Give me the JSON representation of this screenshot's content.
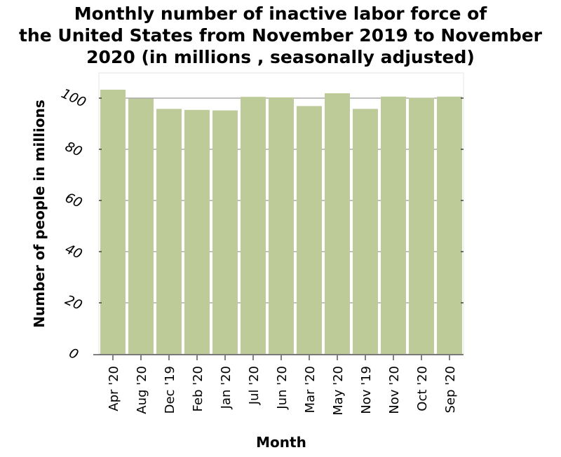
{
  "chart_data": {
    "type": "bar",
    "title_lines": [
      "Monthly number of inactive labor force of",
      "the United States from November 2019 to November",
      "2020 (in millions , seasonally adjusted)"
    ],
    "xlabel": "Month",
    "ylabel": "Number of people in millions",
    "categories": [
      "Apr '20",
      "Aug '20",
      "Dec '19",
      "Feb '20",
      "Jan '20",
      "Jul '20",
      "Jun '20",
      "Mar '20",
      "May '20",
      "Nov '19",
      "Nov '20",
      "Oct '20",
      "Sep '20"
    ],
    "values": [
      103.3,
      99.8,
      95.8,
      95.4,
      95.2,
      100.5,
      100.3,
      96.9,
      101.9,
      95.8,
      100.6,
      100.1,
      100.6
    ],
    "ylim": [
      0,
      100
    ],
    "yticks": [
      0,
      20,
      40,
      60,
      80,
      100
    ],
    "grid": "horizontal",
    "bar_color": "#bccb98",
    "grid_color": "#808080"
  }
}
